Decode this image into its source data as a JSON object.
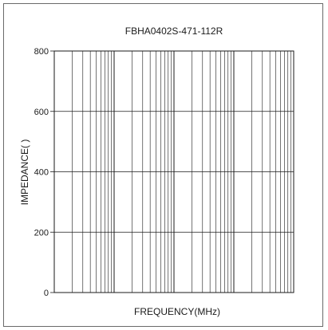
{
  "chart_data": {
    "type": "line",
    "title": "FBHA0402S-471-112R",
    "xlabel": "FREQUENCY(MHz)",
    "ylabel": "IMPEDANCE(  )",
    "ylim": [
      0,
      800
    ],
    "yticks": [
      0,
      200,
      400,
      600,
      800
    ],
    "x_scale": "log",
    "x_decades": 4,
    "grid": true,
    "series": []
  }
}
